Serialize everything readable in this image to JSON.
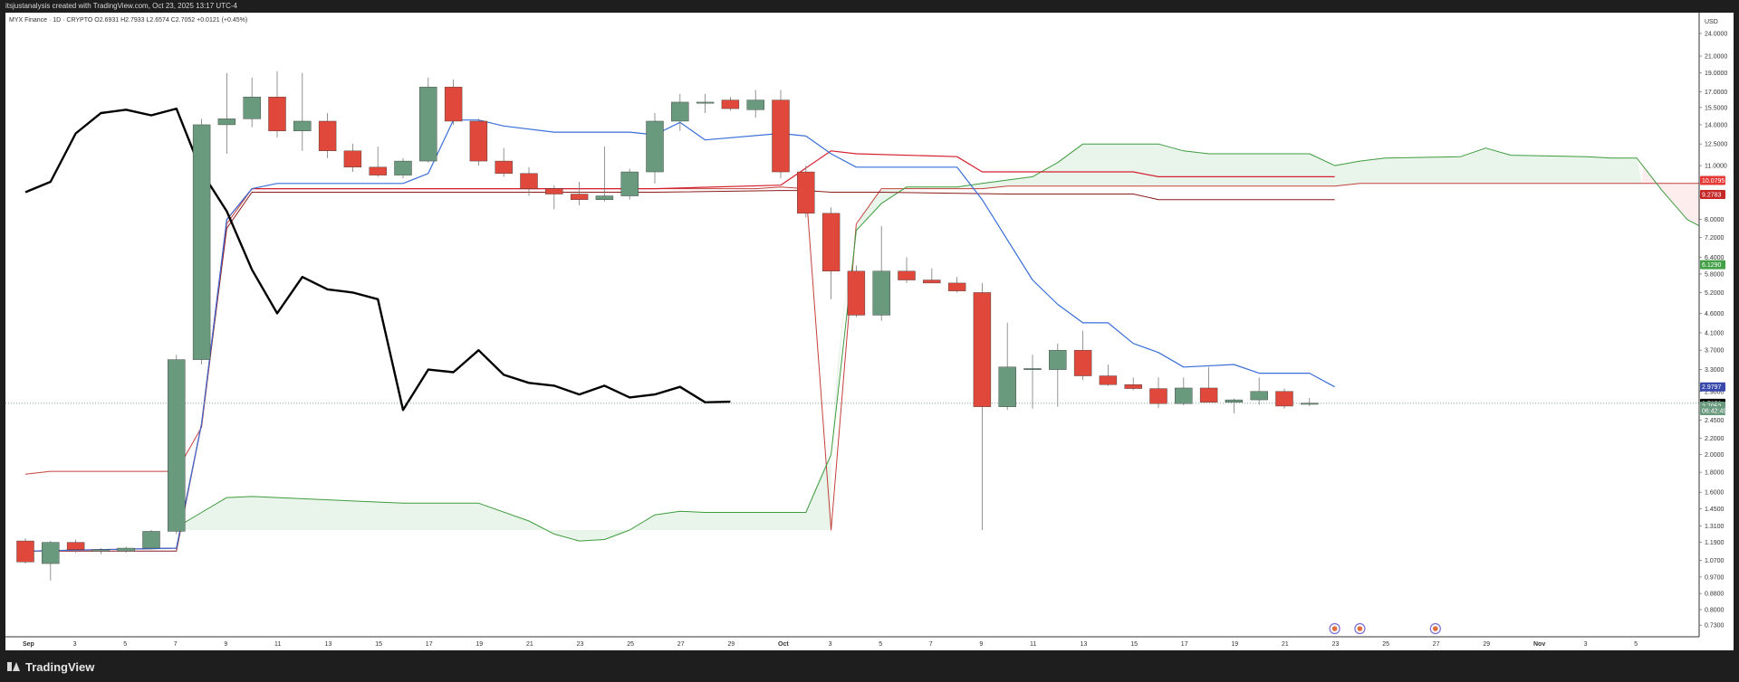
{
  "header": {
    "attribution": "itsjustanalysis created with TradingView.com, Oct 23, 2025 13:17 UTC-4"
  },
  "legend": {
    "symbol": "MYX Finance · 1D · CRYPTO",
    "ohlc": "O2.6931  H2.7933  L2.6574  C2.7052  +0.0121 (+0.45%)"
  },
  "price_axis": {
    "currency": "USD",
    "ticks": [
      "24.0000",
      "21.0000",
      "19.0000",
      "17.0000",
      "15.5000",
      "14.0000",
      "12.5000",
      "11.0000",
      "9.2000",
      "8.0000",
      "7.2000",
      "6.4000",
      "5.8000",
      "5.2000",
      "4.6000",
      "4.1000",
      "3.7000",
      "3.3000",
      "2.9000",
      "2.4500",
      "2.2000",
      "2.0000",
      "1.8000",
      "1.6000",
      "1.4500",
      "1.3100",
      "1.1900",
      "1.0700",
      "0.9700",
      "0.8800",
      "0.8000",
      "0.7300"
    ],
    "badges": [
      {
        "text": "10.0795",
        "bg": "#e53935",
        "fg": "#ffffff",
        "value": 10.0795
      },
      {
        "text": "9.2783",
        "bg": "#c62828",
        "fg": "#ffffff",
        "value": 9.2783
      },
      {
        "text": "6.1290",
        "bg": "#43a047",
        "fg": "#ffffff",
        "value": 6.129
      },
      {
        "text": "2.9797",
        "bg": "#3949ab",
        "fg": "#ffffff",
        "value": 2.9797
      },
      {
        "text": "2.7052",
        "bg": "#000000",
        "fg": "#ffffff",
        "value": 2.7052
      },
      {
        "text": "2.7052",
        "bg": "#6a9a7e",
        "fg": "#ffffff",
        "value": 2.66
      },
      {
        "text": "06:42:49",
        "bg": "#6a9a7e",
        "fg": "#ffffff",
        "value": 2.59
      }
    ]
  },
  "time_axis": {
    "labels": [
      {
        "text": "Sep",
        "bold": true
      },
      {
        "text": "3"
      },
      {
        "text": "5"
      },
      {
        "text": "7"
      },
      {
        "text": "9"
      },
      {
        "text": "11"
      },
      {
        "text": "13"
      },
      {
        "text": "15"
      },
      {
        "text": "17"
      },
      {
        "text": "19"
      },
      {
        "text": "21"
      },
      {
        "text": "23"
      },
      {
        "text": "25"
      },
      {
        "text": "27"
      },
      {
        "text": "29"
      },
      {
        "text": "Oct",
        "bold": true
      },
      {
        "text": "3"
      },
      {
        "text": "5"
      },
      {
        "text": "7"
      },
      {
        "text": "9"
      },
      {
        "text": "11"
      },
      {
        "text": "13"
      },
      {
        "text": "15"
      },
      {
        "text": "17"
      },
      {
        "text": "19"
      },
      {
        "text": "21"
      },
      {
        "text": "23"
      },
      {
        "text": "25"
      },
      {
        "text": "27"
      },
      {
        "text": "29"
      },
      {
        "text": "Nov",
        "bold": true
      },
      {
        "text": "3"
      },
      {
        "text": "5"
      }
    ]
  },
  "footer": {
    "brand": "TradingView"
  },
  "colors": {
    "up": "#6a9a7e",
    "down": "#e0483b",
    "tenkan": "#3a6fd8",
    "kijun": "#d4202f",
    "spanA": "#3e9b3e",
    "spanB": "#c2403b",
    "chikou": "#000000",
    "lagging_kijun": "#8b1a1a",
    "lagging_tenkan": "#8b6914",
    "cloud_bull": "rgba(76,175,80,0.12)",
    "cloud_bear": "rgba(239,83,80,0.10)"
  },
  "chart_data": {
    "type": "candlestick",
    "title": "MYX Finance · 1D · CRYPTO",
    "y_scale": "log",
    "ylim": [
      0.7,
      26
    ],
    "x_start_date": "2025-09-01",
    "candles": [
      {
        "day": 0,
        "o": 1.2,
        "h": 1.22,
        "l": 1.05,
        "c": 1.06
      },
      {
        "day": 1,
        "o": 1.05,
        "h": 1.2,
        "l": 0.95,
        "c": 1.19
      },
      {
        "day": 2,
        "o": 1.19,
        "h": 1.21,
        "l": 1.12,
        "c": 1.14
      },
      {
        "day": 3,
        "o": 1.13,
        "h": 1.15,
        "l": 1.11,
        "c": 1.14
      },
      {
        "day": 4,
        "o": 1.13,
        "h": 1.16,
        "l": 1.12,
        "c": 1.15
      },
      {
        "day": 5,
        "o": 1.15,
        "h": 1.28,
        "l": 1.14,
        "c": 1.27
      },
      {
        "day": 6,
        "o": 1.27,
        "h": 3.6,
        "l": 1.25,
        "c": 3.5
      },
      {
        "day": 7,
        "o": 3.5,
        "h": 14.5,
        "l": 3.4,
        "c": 14.0
      },
      {
        "day": 8,
        "o": 14.0,
        "h": 19.0,
        "l": 11.8,
        "c": 14.5
      },
      {
        "day": 9,
        "o": 14.5,
        "h": 18.5,
        "l": 13.8,
        "c": 16.5
      },
      {
        "day": 10,
        "o": 16.5,
        "h": 19.2,
        "l": 13.0,
        "c": 13.5
      },
      {
        "day": 11,
        "o": 13.5,
        "h": 19.0,
        "l": 12.0,
        "c": 14.3
      },
      {
        "day": 12,
        "o": 14.3,
        "h": 15.0,
        "l": 11.5,
        "c": 12.0
      },
      {
        "day": 13,
        "o": 12.0,
        "h": 12.5,
        "l": 10.6,
        "c": 10.9
      },
      {
        "day": 14,
        "o": 10.9,
        "h": 12.3,
        "l": 10.3,
        "c": 10.4
      },
      {
        "day": 15,
        "o": 10.4,
        "h": 11.5,
        "l": 10.2,
        "c": 11.3
      },
      {
        "day": 16,
        "o": 11.3,
        "h": 18.5,
        "l": 11.2,
        "c": 17.5
      },
      {
        "day": 17,
        "o": 17.5,
        "h": 18.3,
        "l": 14.0,
        "c": 14.3
      },
      {
        "day": 18,
        "o": 14.3,
        "h": 14.5,
        "l": 11.0,
        "c": 11.3
      },
      {
        "day": 19,
        "o": 11.3,
        "h": 12.2,
        "l": 10.3,
        "c": 10.5
      },
      {
        "day": 20,
        "o": 10.5,
        "h": 10.9,
        "l": 9.2,
        "c": 9.6
      },
      {
        "day": 21,
        "o": 9.6,
        "h": 9.8,
        "l": 8.5,
        "c": 9.3
      },
      {
        "day": 22,
        "o": 9.3,
        "h": 10.0,
        "l": 8.7,
        "c": 9.0
      },
      {
        "day": 23,
        "o": 9.0,
        "h": 12.3,
        "l": 8.9,
        "c": 9.2
      },
      {
        "day": 24,
        "o": 9.2,
        "h": 10.8,
        "l": 9.0,
        "c": 10.6
      },
      {
        "day": 25,
        "o": 10.6,
        "h": 15.0,
        "l": 9.9,
        "c": 14.3
      },
      {
        "day": 26,
        "o": 14.3,
        "h": 16.8,
        "l": 13.5,
        "c": 16.0
      },
      {
        "day": 27,
        "o": 16.0,
        "h": 16.8,
        "l": 15.0,
        "c": 16.0
      },
      {
        "day": 28,
        "o": 16.2,
        "h": 16.5,
        "l": 15.2,
        "c": 15.4
      },
      {
        "day": 29,
        "o": 15.3,
        "h": 17.2,
        "l": 14.6,
        "c": 16.2
      },
      {
        "day": 30,
        "o": 16.2,
        "h": 17.2,
        "l": 10.2,
        "c": 10.6
      },
      {
        "day": 31,
        "o": 10.6,
        "h": 11.0,
        "l": 8.1,
        "c": 8.3
      },
      {
        "day": 32,
        "o": 8.3,
        "h": 8.6,
        "l": 5.0,
        "c": 5.9
      },
      {
        "day": 33,
        "o": 5.9,
        "h": 6.1,
        "l": 4.5,
        "c": 4.55
      },
      {
        "day": 34,
        "o": 4.55,
        "h": 7.7,
        "l": 4.4,
        "c": 5.9
      },
      {
        "day": 35,
        "o": 5.9,
        "h": 6.4,
        "l": 5.5,
        "c": 5.6
      },
      {
        "day": 36,
        "o": 5.6,
        "h": 6.0,
        "l": 5.5,
        "c": 5.5
      },
      {
        "day": 37,
        "o": 5.5,
        "h": 5.7,
        "l": 5.2,
        "c": 5.25
      },
      {
        "day": 38,
        "o": 5.2,
        "h": 5.5,
        "l": 1.28,
        "c": 2.65
      },
      {
        "day": 39,
        "o": 2.65,
        "h": 4.35,
        "l": 2.6,
        "c": 3.35
      },
      {
        "day": 40,
        "o": 3.3,
        "h": 3.6,
        "l": 2.62,
        "c": 3.32
      },
      {
        "day": 41,
        "o": 3.3,
        "h": 3.85,
        "l": 2.65,
        "c": 3.7
      },
      {
        "day": 42,
        "o": 3.7,
        "h": 4.15,
        "l": 3.1,
        "c": 3.18
      },
      {
        "day": 43,
        "o": 3.18,
        "h": 3.4,
        "l": 3.0,
        "c": 3.02
      },
      {
        "day": 44,
        "o": 3.02,
        "h": 3.15,
        "l": 2.92,
        "c": 2.95
      },
      {
        "day": 45,
        "o": 2.95,
        "h": 3.15,
        "l": 2.63,
        "c": 2.7
      },
      {
        "day": 46,
        "o": 2.7,
        "h": 3.15,
        "l": 2.67,
        "c": 2.96
      },
      {
        "day": 47,
        "o": 2.96,
        "h": 3.35,
        "l": 2.75,
        "c": 2.72
      },
      {
        "day": 48,
        "o": 2.72,
        "h": 2.78,
        "l": 2.55,
        "c": 2.76
      },
      {
        "day": 49,
        "o": 2.76,
        "h": 3.15,
        "l": 2.68,
        "c": 2.9
      },
      {
        "day": 50,
        "o": 2.9,
        "h": 2.95,
        "l": 2.62,
        "c": 2.66
      },
      {
        "day": 51,
        "o": 2.69,
        "h": 2.79,
        "l": 2.66,
        "c": 2.7052
      }
    ],
    "tenkan": [
      [
        0,
        1.13
      ],
      [
        6,
        1.15
      ],
      [
        7,
        2.4
      ],
      [
        8,
        8.0
      ],
      [
        9,
        9.6
      ],
      [
        10,
        9.9
      ],
      [
        15,
        9.9
      ],
      [
        16,
        10.5
      ],
      [
        17,
        14.4
      ],
      [
        18,
        14.4
      ],
      [
        19,
        13.9
      ],
      [
        21,
        13.4
      ],
      [
        24,
        13.4
      ],
      [
        25,
        13.2
      ],
      [
        26,
        14.2
      ],
      [
        27,
        12.8
      ],
      [
        30,
        13.3
      ],
      [
        31,
        13.1
      ],
      [
        32,
        11.8
      ],
      [
        33,
        10.9
      ],
      [
        37,
        10.9
      ],
      [
        38,
        9.0
      ],
      [
        40,
        5.6
      ],
      [
        41,
        4.85
      ],
      [
        42,
        4.35
      ],
      [
        43,
        4.35
      ],
      [
        44,
        3.85
      ],
      [
        45,
        3.65
      ],
      [
        46,
        3.35
      ],
      [
        48,
        3.4
      ],
      [
        49,
        3.23
      ],
      [
        51,
        3.23
      ],
      [
        52,
        2.98
      ]
    ],
    "kijun": [
      [
        0,
        1.13
      ],
      [
        6,
        1.15
      ],
      [
        7,
        2.4
      ],
      [
        8,
        8.0
      ],
      [
        9,
        9.6
      ],
      [
        10,
        9.6
      ],
      [
        25,
        9.6
      ],
      [
        30,
        9.8
      ],
      [
        32,
        12.0
      ],
      [
        33,
        11.8
      ],
      [
        37,
        11.6
      ],
      [
        38,
        10.6
      ],
      [
        44,
        10.6
      ],
      [
        45,
        10.3
      ],
      [
        52,
        10.3
      ]
    ],
    "kijun_lower": [
      [
        0,
        1.13
      ],
      [
        6,
        1.13
      ],
      [
        7,
        2.4
      ],
      [
        8,
        7.6
      ],
      [
        9,
        9.4
      ],
      [
        10,
        9.4
      ],
      [
        25,
        9.4
      ],
      [
        30,
        9.5
      ],
      [
        31,
        9.5
      ],
      [
        32,
        9.4
      ],
      [
        34,
        9.4
      ],
      [
        39,
        9.3
      ],
      [
        44,
        9.3
      ],
      [
        45,
        9.0
      ],
      [
        52,
        9.0
      ]
    ],
    "span_a": [
      [
        6,
        1.3
      ],
      [
        7,
        1.42
      ],
      [
        8,
        1.55
      ],
      [
        9,
        1.56
      ],
      [
        15,
        1.5
      ],
      [
        18,
        1.5
      ],
      [
        20,
        1.35
      ],
      [
        21,
        1.25
      ],
      [
        22,
        1.2
      ],
      [
        23,
        1.21
      ],
      [
        24,
        1.28
      ],
      [
        25,
        1.4
      ],
      [
        26,
        1.43
      ],
      [
        27,
        1.42
      ],
      [
        31,
        1.42
      ],
      [
        32,
        2.0
      ],
      [
        33,
        7.5
      ],
      [
        34,
        8.8
      ],
      [
        35,
        9.7
      ],
      [
        37,
        9.7
      ],
      [
        38,
        9.9
      ],
      [
        40,
        10.3
      ],
      [
        41,
        11.2
      ],
      [
        42,
        12.5
      ],
      [
        45,
        12.5
      ],
      [
        46,
        12.0
      ],
      [
        47,
        11.8
      ],
      [
        51,
        11.8
      ],
      [
        52,
        11.0
      ],
      [
        53,
        11.3
      ],
      [
        54,
        11.5
      ],
      [
        57,
        11.6
      ],
      [
        58,
        12.2
      ],
      [
        59,
        11.7
      ],
      [
        62,
        11.6
      ],
      [
        63,
        11.5
      ],
      [
        64,
        11.5
      ],
      [
        65,
        9.5
      ],
      [
        66,
        8.0
      ],
      [
        67,
        7.4
      ]
    ],
    "span_b": [
      [
        0,
        1.78
      ],
      [
        1,
        1.81
      ],
      [
        6,
        1.81
      ],
      [
        7,
        2.35
      ],
      [
        8,
        7.8
      ],
      [
        9,
        9.6
      ],
      [
        15,
        9.6
      ],
      [
        29,
        9.6
      ],
      [
        30,
        9.7
      ],
      [
        31,
        9.6
      ],
      [
        32,
        1.28
      ],
      [
        33,
        7.8
      ],
      [
        34,
        9.6
      ],
      [
        38,
        9.6
      ],
      [
        39,
        9.75
      ],
      [
        52,
        9.75
      ],
      [
        53,
        9.9
      ],
      [
        66,
        9.9
      ],
      [
        67,
        9.9
      ]
    ],
    "cloud_bottom": [
      [
        6,
        1.28
      ],
      [
        31,
        1.28
      ],
      [
        32,
        1.28
      ]
    ],
    "chikou": [
      [
        0,
        9.4
      ],
      [
        1,
        10.0
      ],
      [
        2,
        13.3
      ],
      [
        3,
        15.0
      ],
      [
        4,
        15.3
      ],
      [
        5,
        14.8
      ],
      [
        6,
        15.4
      ],
      [
        7,
        10.6
      ],
      [
        8,
        8.4
      ],
      [
        9,
        5.95
      ],
      [
        10,
        4.6
      ],
      [
        11,
        5.7
      ],
      [
        12,
        5.3
      ],
      [
        13,
        5.2
      ],
      [
        14,
        5.0
      ],
      [
        15,
        2.6
      ],
      [
        16,
        3.3
      ],
      [
        17,
        3.25
      ],
      [
        18,
        3.7
      ],
      [
        19,
        3.2
      ],
      [
        20,
        3.05
      ],
      [
        21,
        3.0
      ],
      [
        22,
        2.85
      ],
      [
        23,
        3.0
      ],
      [
        24,
        2.8
      ],
      [
        25,
        2.85
      ],
      [
        26,
        2.98
      ],
      [
        27,
        2.72
      ],
      [
        28,
        2.73
      ]
    ],
    "earnings_markers_days": [
      52,
      53,
      56
    ]
  }
}
